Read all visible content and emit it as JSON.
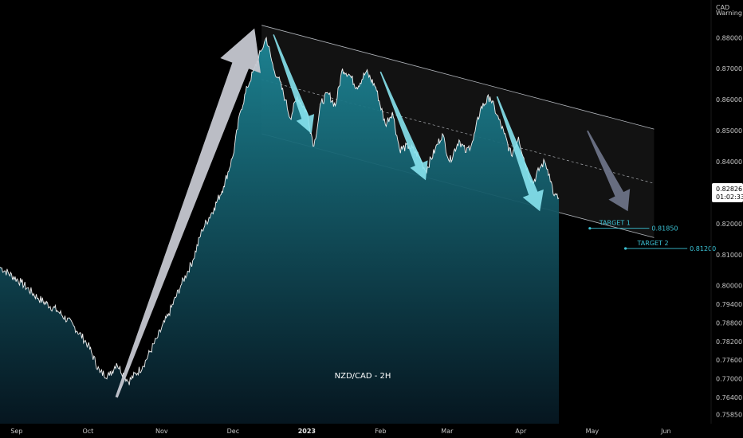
{
  "chart_data": {
    "type": "area",
    "title": "NZD/CAD - 2H",
    "currency": "CAD",
    "currency_sub": "Warning",
    "last_price": "0.82826",
    "countdown": "01:02:33",
    "y_ticks": [
      "0.88000",
      "0.87000",
      "0.86000",
      "0.85000",
      "0.84000",
      "0.83000",
      "0.82000",
      "0.81000",
      "0.80000",
      "0.79400",
      "0.78800",
      "0.78200",
      "0.77600",
      "0.77000",
      "0.76400",
      "0.75850"
    ],
    "x_ticks": [
      {
        "label": "Sep",
        "date": "2022-09-01",
        "bold": false
      },
      {
        "label": "Oct",
        "date": "2022-10-01",
        "bold": false
      },
      {
        "label": "Nov",
        "date": "2022-11-01",
        "bold": false
      },
      {
        "label": "Dec",
        "date": "2022-12-01",
        "bold": false
      },
      {
        "label": "2023",
        "date": "2023-01-01",
        "bold": true
      },
      {
        "label": "Feb",
        "date": "2023-02-01",
        "bold": false
      },
      {
        "label": "Mar",
        "date": "2023-03-01",
        "bold": false
      },
      {
        "label": "Apr",
        "date": "2023-04-01",
        "bold": false
      },
      {
        "label": "May",
        "date": "2023-05-01",
        "bold": false
      },
      {
        "label": "Jun",
        "date": "2023-06-01",
        "bold": false
      }
    ],
    "series": [
      {
        "x": [
          "2022-08-25",
          "2022-09-03",
          "2022-09-10",
          "2022-09-18",
          "2022-09-25",
          "2022-10-01",
          "2022-10-06",
          "2022-10-10",
          "2022-10-13",
          "2022-10-18",
          "2022-10-24",
          "2022-10-30",
          "2022-11-04",
          "2022-11-09",
          "2022-11-14",
          "2022-11-18",
          "2022-11-23",
          "2022-11-27",
          "2022-12-01",
          "2022-12-04",
          "2022-12-07",
          "2022-12-10",
          "2022-12-13",
          "2022-12-15",
          "2022-12-18",
          "2022-12-20",
          "2022-12-23",
          "2022-12-25",
          "2022-12-28",
          "2023-01-01",
          "2023-01-04",
          "2023-01-07",
          "2023-01-10",
          "2023-01-13",
          "2023-01-16",
          "2023-01-19",
          "2023-01-22",
          "2023-01-26",
          "2023-01-30",
          "2023-02-03",
          "2023-02-06",
          "2023-02-09",
          "2023-02-13",
          "2023-02-17",
          "2023-02-20",
          "2023-02-24",
          "2023-02-27",
          "2023-03-02",
          "2023-03-06",
          "2023-03-09",
          "2023-03-12",
          "2023-03-15",
          "2023-03-19",
          "2023-03-22",
          "2023-03-25",
          "2023-03-28",
          "2023-03-31",
          "2023-04-03",
          "2023-04-06",
          "2023-04-09",
          "2023-04-11",
          "2023-04-13",
          "2023-04-15",
          "2023-04-17"
        ],
        "values": [
          0.806,
          0.801,
          0.796,
          0.792,
          0.787,
          0.781,
          0.772,
          0.771,
          0.775,
          0.769,
          0.774,
          0.783,
          0.791,
          0.8,
          0.808,
          0.818,
          0.825,
          0.832,
          0.842,
          0.856,
          0.864,
          0.87,
          0.876,
          0.88,
          0.87,
          0.867,
          0.86,
          0.854,
          0.861,
          0.856,
          0.845,
          0.859,
          0.862,
          0.858,
          0.87,
          0.868,
          0.864,
          0.869,
          0.864,
          0.852,
          0.856,
          0.844,
          0.845,
          0.842,
          0.837,
          0.844,
          0.849,
          0.84,
          0.847,
          0.843,
          0.847,
          0.857,
          0.861,
          0.855,
          0.849,
          0.842,
          0.848,
          0.839,
          0.833,
          0.838,
          0.84,
          0.836,
          0.829,
          0.8283
        ]
      }
    ],
    "annotations": {
      "targets": [
        {
          "label": "TARGET 1",
          "value": 0.8185,
          "value_label": "0.81850",
          "from": "2023-04-30",
          "to": "2023-05-25"
        },
        {
          "label": "TARGET 2",
          "value": 0.812,
          "value_label": "0.81200",
          "from": "2023-05-15",
          "to": "2023-06-10"
        }
      ],
      "channel": {
        "upper": [
          [
            "2022-12-13",
            0.884
          ],
          [
            "2023-05-27",
            0.8505
          ]
        ],
        "lower": [
          [
            "2022-12-13",
            0.849
          ],
          [
            "2023-05-27",
            0.8155
          ]
        ],
        "mid": [
          [
            "2022-12-13",
            0.8665
          ],
          [
            "2023-05-27",
            0.833
          ]
        ]
      },
      "color_up_arrow": "#c5c7d0",
      "color_down_arrows": "#87e3ee",
      "color_projection": "#6d7387"
    },
    "colors": {
      "background": "#000000",
      "line": "#f0f0f0",
      "area_top": "#1c8596",
      "area_bottom": "#071c28",
      "channel": "#cfd3da",
      "target": "#3cc3d6",
      "price_tag_bg": "#ffffff"
    },
    "ylim": [
      0.7555,
      0.887
    ],
    "xlim": [
      "2022-08-25",
      "2023-06-20"
    ]
  }
}
